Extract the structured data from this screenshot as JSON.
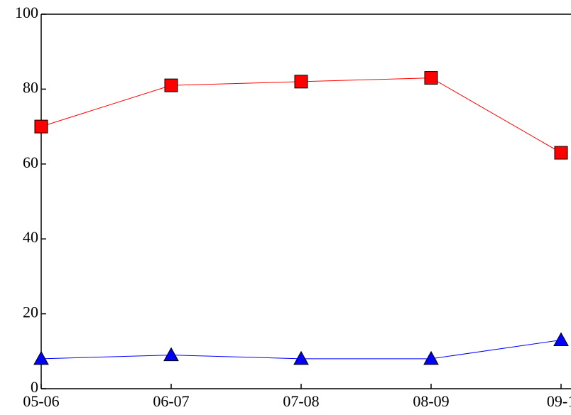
{
  "chart_data": {
    "type": "line",
    "categories": [
      "05-06",
      "06-07",
      "07-08",
      "08-09",
      "09-1"
    ],
    "series": [
      {
        "color": "#ff0000",
        "marker": "square",
        "values": [
          70,
          81,
          82,
          83,
          63
        ]
      },
      {
        "color": "#0000ff",
        "marker": "triangle",
        "values": [
          8,
          9,
          8,
          8,
          13
        ]
      }
    ],
    "ylim": [
      0,
      100
    ],
    "yticks": [
      0,
      20,
      40,
      60,
      80,
      100
    ],
    "grid": false
  }
}
